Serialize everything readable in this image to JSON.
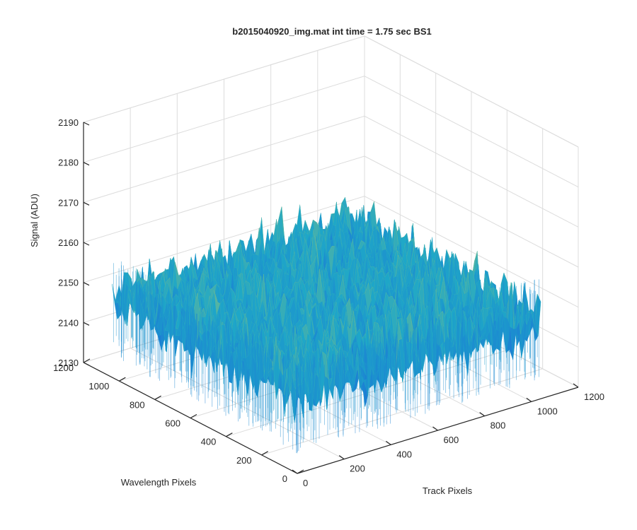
{
  "chart_data": {
    "type": "surface",
    "title": "b2015040920_img.mat int time = 1.75 sec   BS1",
    "xlabel": "Track Pixels",
    "ylabel": "Wavelength Pixels",
    "zlabel": "Signal (ADU)",
    "xlim": [
      0,
      1200
    ],
    "ylim": [
      0,
      1200
    ],
    "zlim": [
      2130,
      2190
    ],
    "xticks": [
      "0",
      "200",
      "400",
      "600",
      "800",
      "1000",
      "1200"
    ],
    "yticks": [
      "0",
      "200",
      "400",
      "600",
      "800",
      "1000",
      "1200"
    ],
    "zticks": [
      "2130",
      "2140",
      "2150",
      "2160",
      "2170",
      "2180",
      "2190"
    ],
    "surface_extent": {
      "x": [
        0,
        1040
      ],
      "y": [
        0,
        1040
      ]
    },
    "signal_mean": 2150,
    "signal_noise_range": [
      2135,
      2180
    ],
    "colormap": "parula",
    "grid": true,
    "legend": "none",
    "colors": {
      "low": "#1a63dc",
      "mid": "#1ea7c8",
      "high": "#d4d34a",
      "axis": "#262626",
      "grid": "#dcdcdc"
    }
  }
}
